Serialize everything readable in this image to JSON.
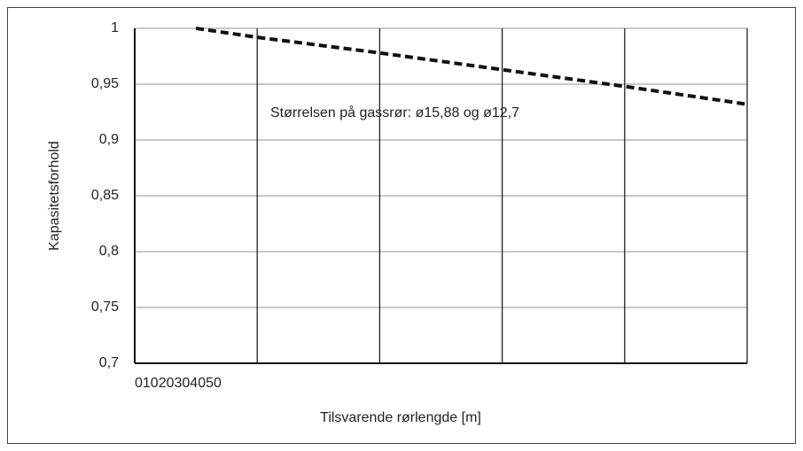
{
  "chart_data": {
    "type": "line",
    "xlabel": "Tilsvarende rørlengde [m]",
    "ylabel": "Kapasitetsforhold",
    "annotation": "Størrelsen på gassrør: ø15,88 og ø12,7",
    "x": [
      5,
      10,
      20,
      30,
      40,
      50
    ],
    "series": [
      {
        "color": "#111111",
        "line_style": "dashed",
        "values": [
          1,
          0.992,
          0.978,
          0.963,
          0.948,
          0.932
        ]
      }
    ],
    "xlim": [
      0,
      50
    ],
    "xticks": [
      0,
      10,
      20,
      30,
      40,
      50
    ],
    "ylim": [
      0.7,
      1
    ],
    "yticks": [
      {
        "value": 0.7,
        "label": "0,7"
      },
      {
        "value": 0.75,
        "label": "0,75"
      },
      {
        "value": 0.8,
        "label": "0,8"
      },
      {
        "value": 0.85,
        "label": "0,85"
      },
      {
        "value": 0.9,
        "label": "0,9"
      },
      {
        "value": 0.95,
        "label": "0,95"
      },
      1
    ],
    "grid": true
  }
}
